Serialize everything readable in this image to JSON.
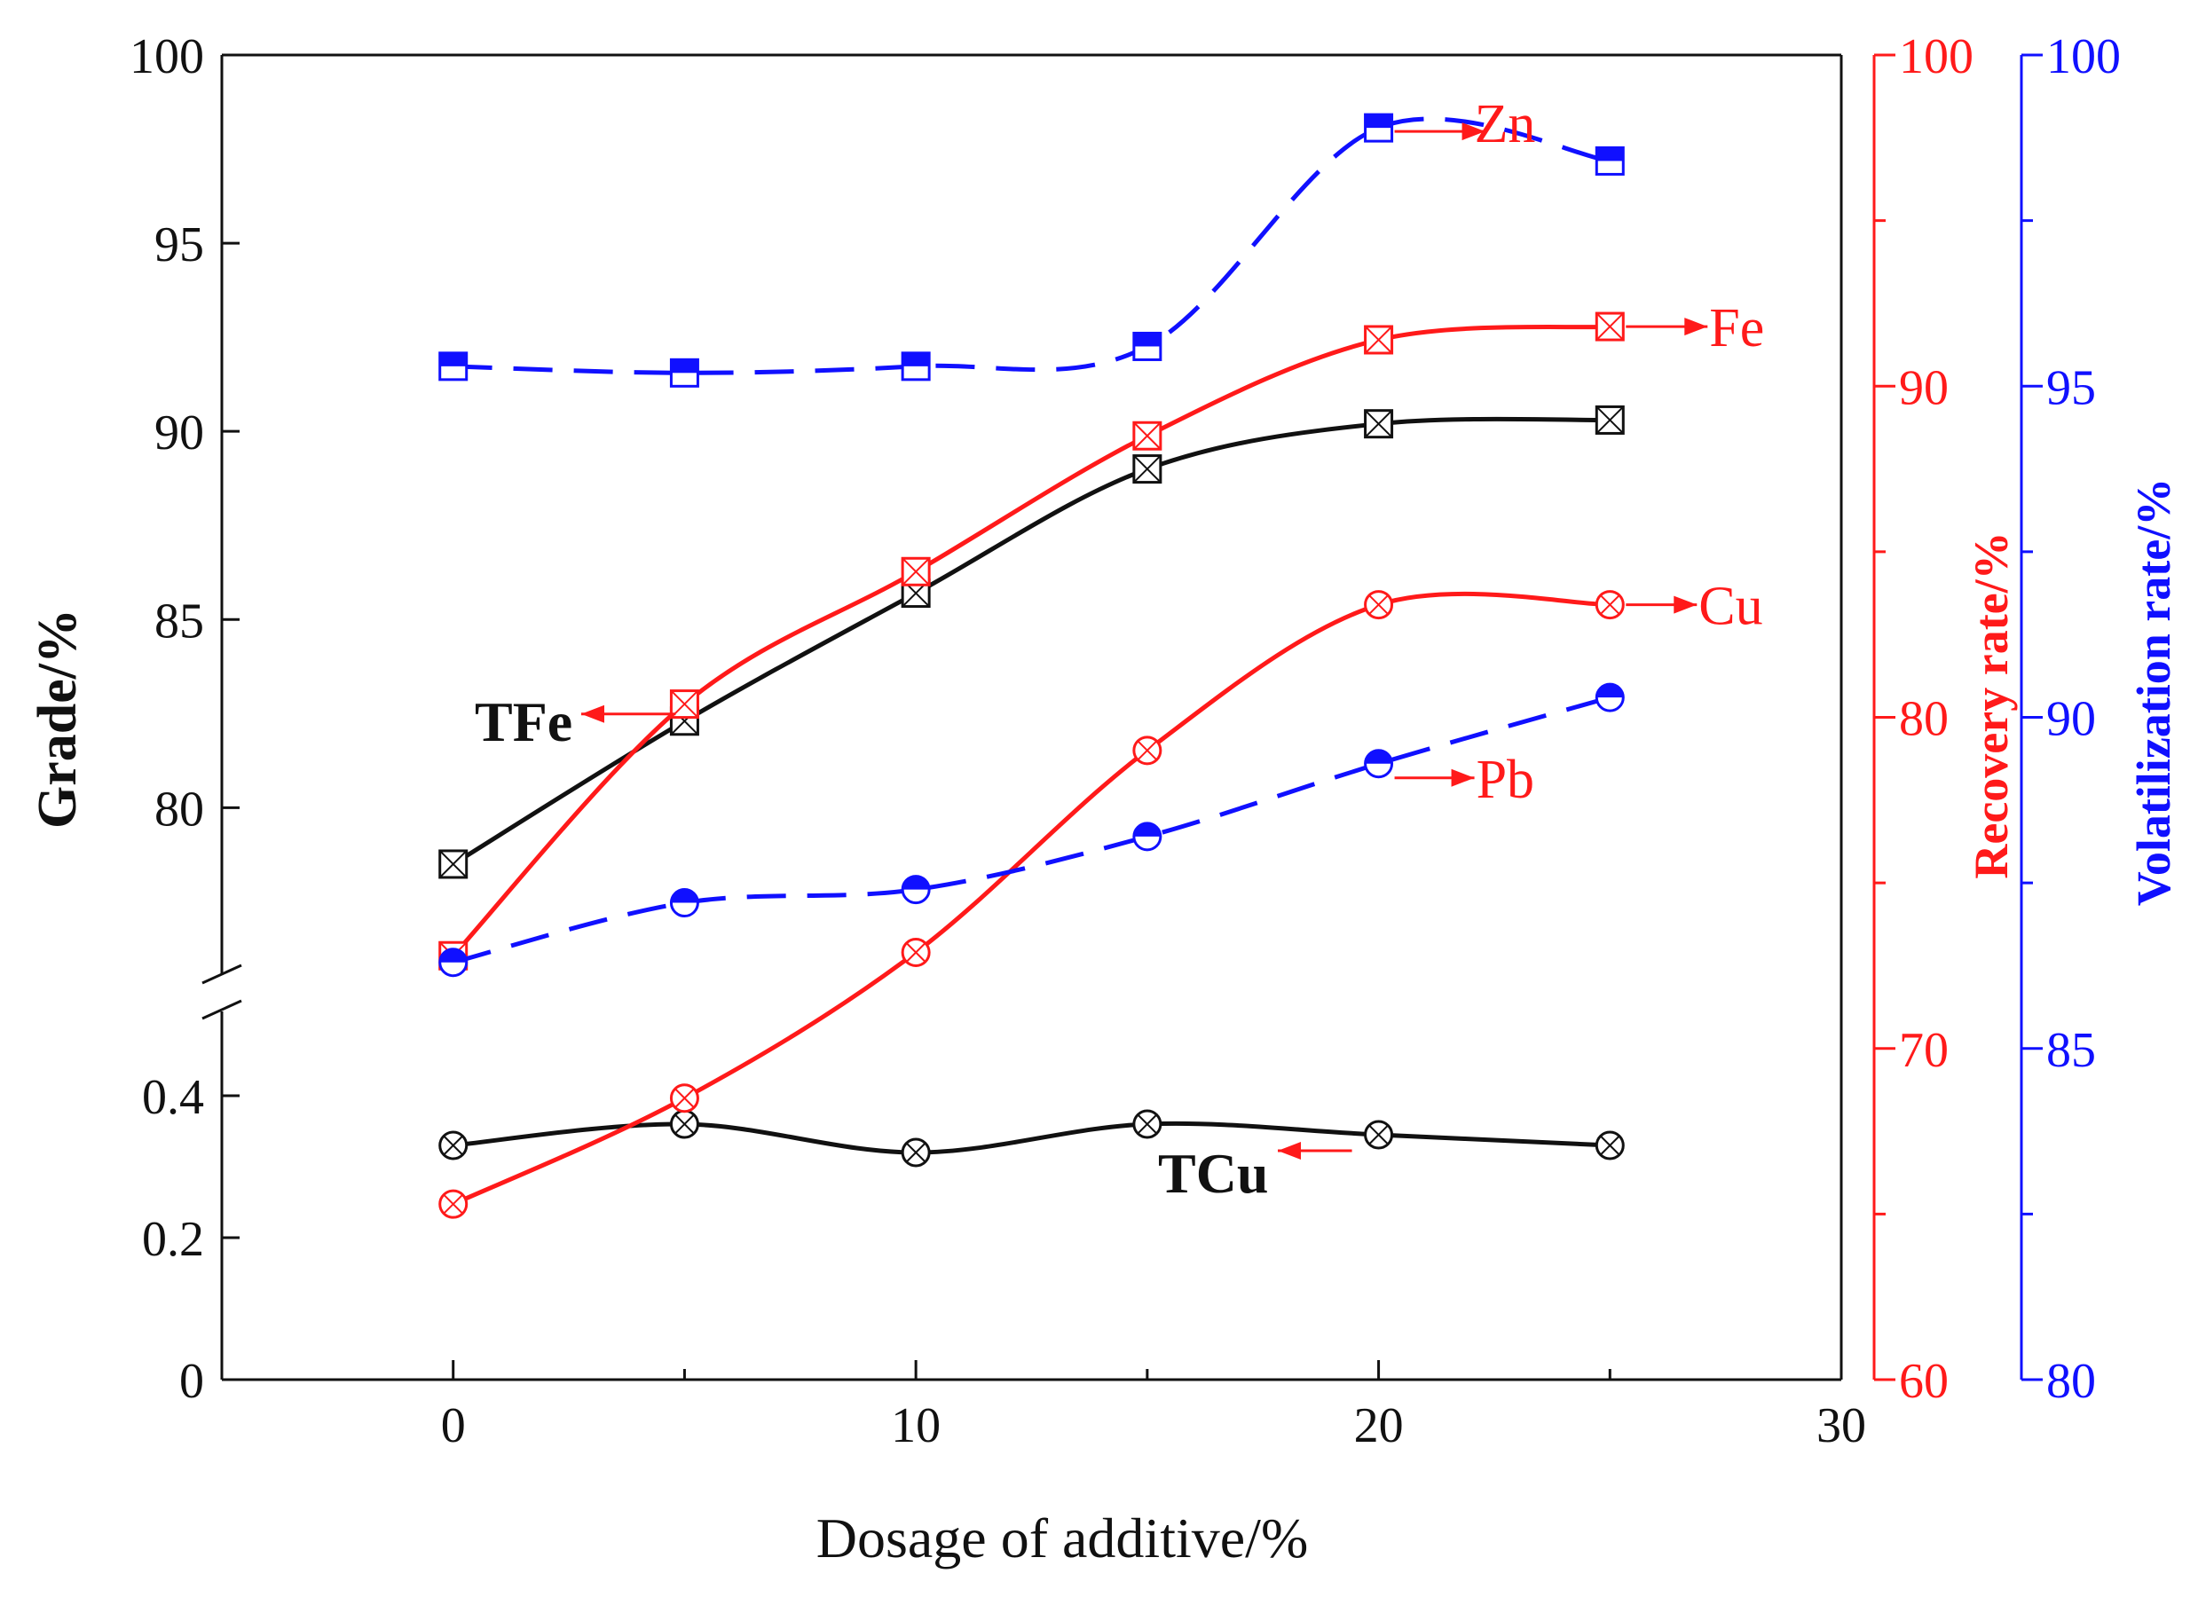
{
  "colors": {
    "black": "#111111",
    "red": "#ff1a1a",
    "blue": "#1010ff"
  },
  "chart_data": {
    "type": "line",
    "xlabel": "Dosage of additive/%",
    "x_axis": {
      "range": [
        -5,
        30
      ],
      "ticks": [
        0,
        10,
        20,
        30
      ]
    },
    "left_axis": {
      "label": "Grade/%",
      "upper_range": [
        76,
        100
      ],
      "upper_ticks": [
        80,
        85,
        90,
        95,
        100
      ],
      "lower_range": [
        0,
        0.5
      ],
      "lower_ticks": [
        "0",
        "0.2",
        "0.4"
      ],
      "axis_break": true
    },
    "right_axis_1": {
      "label": "Recovery rate/%",
      "range": [
        60,
        100
      ],
      "ticks": [
        60,
        70,
        80,
        90,
        100
      ],
      "color": "red"
    },
    "right_axis_2": {
      "label": "Volatilization rate/%",
      "range": [
        80,
        100
      ],
      "ticks": [
        80,
        85,
        90,
        95,
        100
      ],
      "color": "blue"
    },
    "series": [
      {
        "name": "TFe",
        "axis": "left_upper",
        "color": "black",
        "marker": "square-x",
        "style": "solid",
        "x": [
          0,
          5,
          10,
          15,
          20,
          25
        ],
        "y": [
          78.5,
          82.3,
          85.7,
          89.0,
          90.2,
          90.3
        ]
      },
      {
        "name": "TCu",
        "axis": "left_lower",
        "color": "black",
        "marker": "circle-x",
        "style": "solid",
        "x": [
          0,
          5,
          10,
          15,
          20,
          25
        ],
        "y": [
          0.33,
          0.36,
          0.32,
          0.36,
          0.345,
          0.33
        ]
      },
      {
        "name": "Fe",
        "axis": "right_1",
        "color": "red",
        "marker": "square-x",
        "style": "solid",
        "x": [
          0,
          5,
          10,
          15,
          20,
          25
        ],
        "y": [
          72.8,
          80.4,
          84.4,
          88.5,
          91.4,
          91.8
        ]
      },
      {
        "name": "Cu",
        "axis": "right_1",
        "color": "red",
        "marker": "circle-x",
        "style": "solid",
        "x": [
          0,
          5,
          10,
          15,
          20,
          25
        ],
        "y": [
          65.3,
          68.5,
          72.9,
          79.0,
          83.4,
          83.4
        ]
      },
      {
        "name": "Zn",
        "axis": "right_2",
        "color": "blue",
        "marker": "square-half",
        "style": "dashed",
        "x": [
          0,
          5,
          10,
          15,
          20,
          25
        ],
        "y": [
          95.3,
          95.2,
          95.3,
          95.6,
          98.9,
          98.4
        ]
      },
      {
        "name": "Pb",
        "axis": "right_2",
        "color": "blue",
        "marker": "circle-half",
        "style": "dashed",
        "x": [
          0,
          5,
          10,
          15,
          20,
          25
        ],
        "y": [
          86.3,
          87.2,
          87.4,
          88.2,
          89.3,
          90.3
        ]
      }
    ],
    "annotations": [
      {
        "text": "TFe",
        "color": "black",
        "arrow": "left"
      },
      {
        "text": "TCu",
        "color": "black",
        "arrow": "left"
      },
      {
        "text": "Fe",
        "color": "red",
        "arrow": "right"
      },
      {
        "text": "Cu",
        "color": "red",
        "arrow": "right"
      },
      {
        "text": "Zn",
        "color": "red",
        "arrow": "right"
      },
      {
        "text": "Pb",
        "color": "red",
        "arrow": "right"
      }
    ]
  }
}
